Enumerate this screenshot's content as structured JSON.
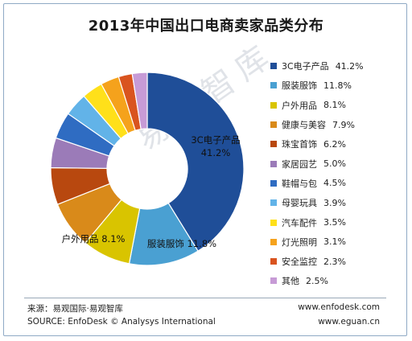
{
  "chart_data": {
    "type": "pie",
    "title": "2013年中国出口电商卖家品类分布",
    "categories": [
      "3C电子产品",
      "服装服饰",
      "户外用品",
      "健康与美容",
      "珠宝首饰",
      "家居园艺",
      "鞋帽与包",
      "母婴玩具",
      "汽车配件",
      "灯光照明",
      "安全监控",
      "其他"
    ],
    "values": [
      41.2,
      11.8,
      8.1,
      7.9,
      6.2,
      5.0,
      4.5,
      3.9,
      3.5,
      3.1,
      2.3,
      2.5
    ],
    "value_labels": [
      "41.2%",
      "11.8%",
      "8.1%",
      "7.9%",
      "6.2%",
      "5.0%",
      "4.5%",
      "3.9%",
      "3.5%",
      "3.1%",
      "2.3%",
      "2.5%"
    ],
    "colors": [
      "#1f4e98",
      "#4aa0d2",
      "#d9c400",
      "#d98a1a",
      "#b8480f",
      "#9b7bb8",
      "#2f6cc2",
      "#62b3e8",
      "#ffe01a",
      "#f5a21c",
      "#d9541f",
      "#c79bd6"
    ],
    "legend_position": "right",
    "hole": "donut"
  },
  "watermark": "易观智库",
  "footer": {
    "source_cn": "来源：易观国际·易观智库",
    "source_en": "SOURCE: EnfoDesk © Analysys International",
    "url1": "www.enfodesk.com",
    "url2": "www.eguan.cn"
  }
}
